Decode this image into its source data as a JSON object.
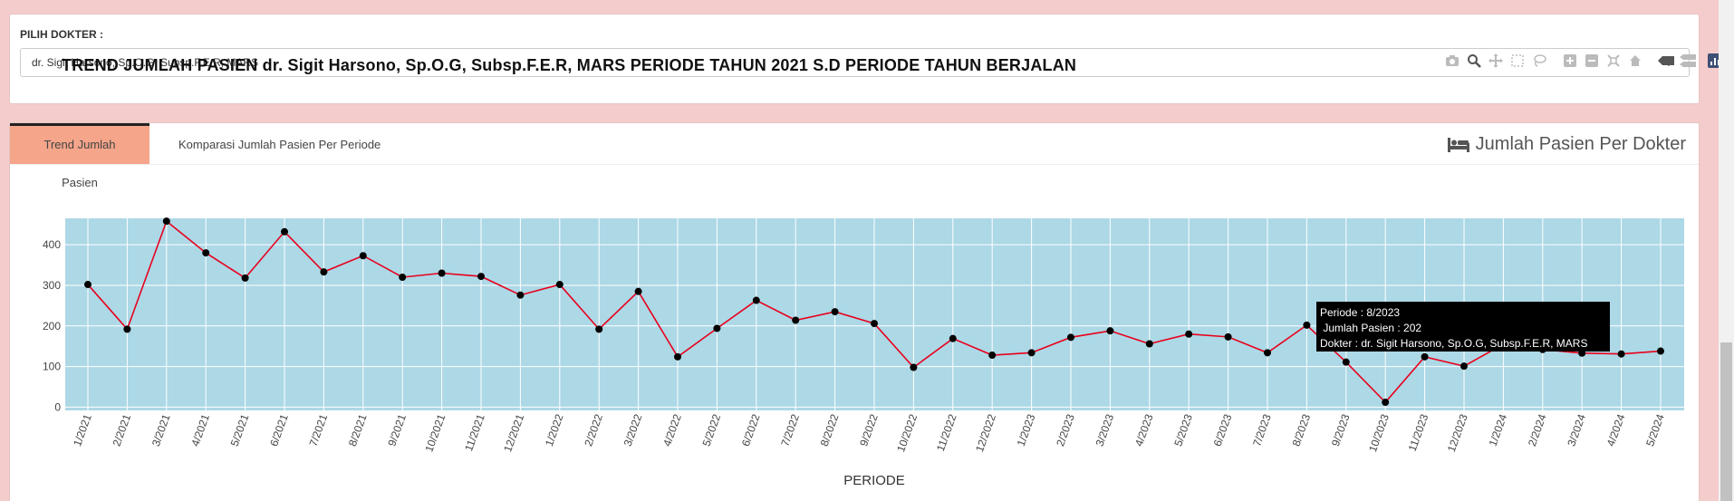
{
  "doctor_select": {
    "label": "PILIH DOKTER :",
    "value": "dr. Sigit Harsono, Sp.O.G, Subsp.F.E.R, MARS"
  },
  "tabs": [
    {
      "label": "Trend Jumlah Pasien",
      "active": true
    },
    {
      "label": "Komparasi Jumlah Pasien Per Periode",
      "active": false
    }
  ],
  "box_title": "Jumlah Pasien Per Dokter",
  "modebar_icons": [
    "camera-icon",
    "zoom-icon",
    "pan-icon",
    "box-select-icon",
    "lasso-icon",
    "zoom-in-icon",
    "zoom-out-icon",
    "autoscale-icon",
    "reset-axes-icon",
    "spike-lines-icon",
    "compare-hover-icon",
    "plotly-logo-icon"
  ],
  "chart_data": {
    "type": "line",
    "title": "TREND JUMLAH PASIEN dr. Sigit Harsono, Sp.O.G, Subsp.F.E.R, MARS PERIODE TAHUN 2021 S.D PERIODE TAHUN BERJALAN",
    "xlabel": "PERIODE",
    "ylabel": "",
    "ylim": [
      -8,
      465
    ],
    "yticks": [
      0,
      100,
      200,
      300,
      400
    ],
    "grid": true,
    "categories": [
      "1/2021",
      "2/2021",
      "3/2021",
      "4/2021",
      "5/2021",
      "6/2021",
      "7/2021",
      "8/2021",
      "9/2021",
      "10/2021",
      "11/2021",
      "12/2021",
      "1/2022",
      "2/2022",
      "3/2022",
      "4/2022",
      "5/2022",
      "6/2022",
      "7/2022",
      "8/2022",
      "9/2022",
      "10/2022",
      "11/2022",
      "12/2022",
      "1/2023",
      "2/2023",
      "3/2023",
      "4/2023",
      "5/2023",
      "6/2023",
      "7/2023",
      "8/2023",
      "9/2023",
      "10/2023",
      "11/2023",
      "12/2023",
      "1/2024",
      "2/2024",
      "3/2024",
      "4/2024",
      "5/2024"
    ],
    "values": [
      302,
      192,
      458,
      380,
      318,
      432,
      333,
      373,
      320,
      330,
      322,
      276,
      302,
      192,
      285,
      124,
      194,
      263,
      214,
      235,
      206,
      98,
      169,
      128,
      134,
      172,
      188,
      156,
      180,
      173,
      134,
      202,
      111,
      12,
      124,
      101,
      155,
      142,
      133,
      131,
      138
    ],
    "line_color": "#e8001c",
    "marker_color": "#000000",
    "plot_bg": "#add8e6",
    "tooltip": {
      "periode": "Periode : 8/2023",
      "jumlah": " Jumlah Pasien : 202",
      "dokter": "Dokter : dr. Sigit Harsono, Sp.O.G, Subsp.F.E.R, MARS"
    }
  }
}
